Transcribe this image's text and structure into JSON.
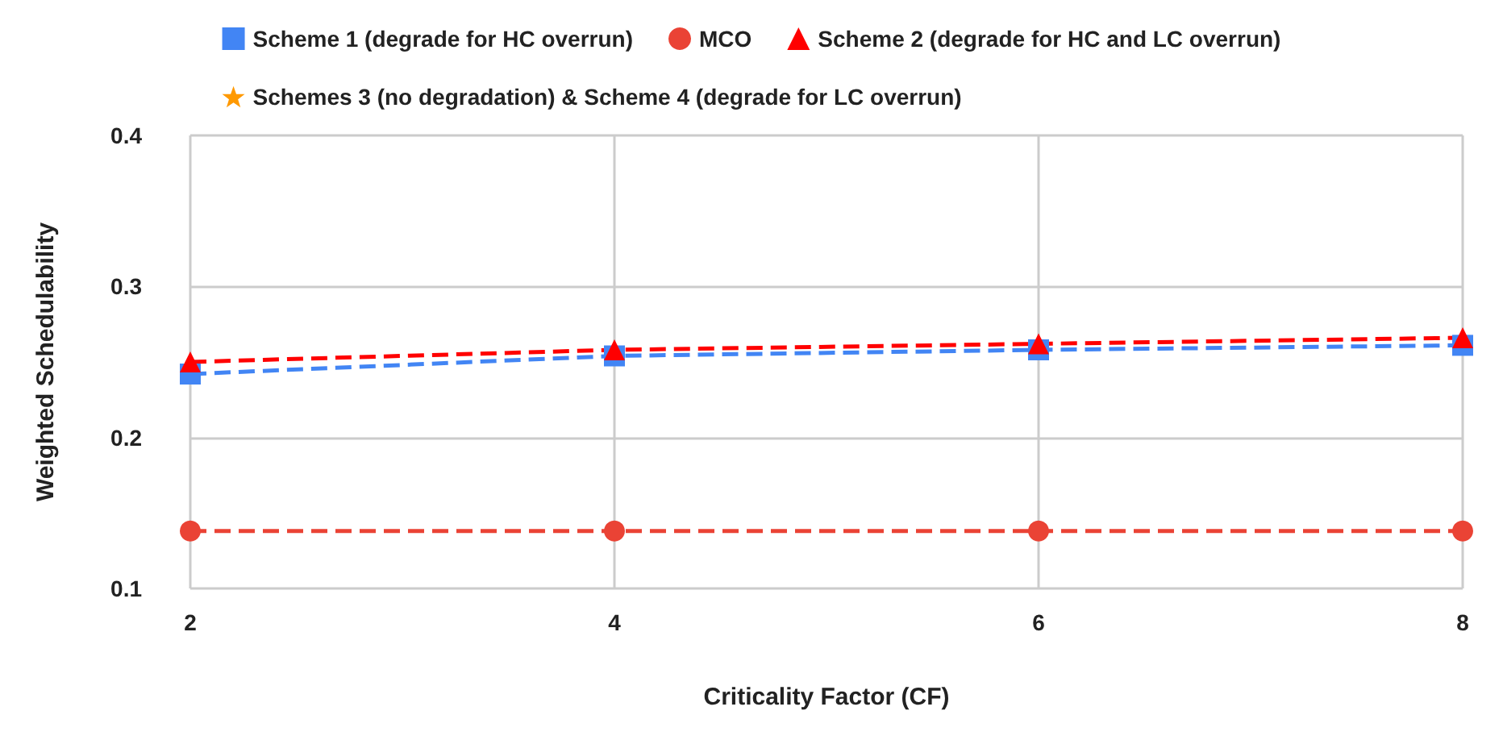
{
  "chart_data": {
    "type": "line",
    "xlabel": "Criticality Factor (CF)",
    "ylabel": "Weighted Schedulability",
    "x": [
      2,
      4,
      6,
      8
    ],
    "xlim": [
      2,
      8
    ],
    "xticks": [
      2,
      4,
      6,
      8
    ],
    "ylim": [
      0.1,
      0.4
    ],
    "yticks": [
      0.1,
      0.2,
      0.3,
      0.4
    ],
    "grid": true,
    "legend": "top",
    "line_style": "dashed",
    "series": [
      {
        "name": "Scheme 1 (degrade for HC overrun)",
        "color": "#4285f4",
        "marker": "square",
        "values": [
          0.242,
          0.254,
          0.258,
          0.261
        ]
      },
      {
        "name": "MCO",
        "color": "#ea4335",
        "marker": "circle",
        "values": [
          0.138,
          0.138,
          0.138,
          0.138
        ]
      },
      {
        "name": "Scheme 2 (degrade for HC and LC overrun)",
        "color": "#ff0000",
        "marker": "triangle",
        "values": [
          0.25,
          0.258,
          0.262,
          0.266
        ]
      },
      {
        "name": "Schemes 3 (no degradation) & Scheme 4 (degrade for LC overrun)",
        "color": "#ff9900",
        "marker": "star",
        "values": [
          null,
          null,
          null,
          null
        ]
      }
    ]
  }
}
